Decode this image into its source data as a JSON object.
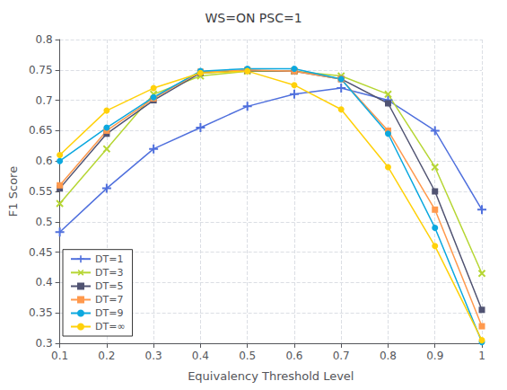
{
  "chart_data": {
    "type": "line",
    "title": "WS=ON PSC=1",
    "xlabel": "Equivalency Threshold Level",
    "ylabel": "F1 Score",
    "x": [
      0.1,
      0.2,
      0.3,
      0.4,
      0.5,
      0.6,
      0.7,
      0.8,
      0.9,
      1.0
    ],
    "xlim": [
      0.1,
      1.0
    ],
    "ylim": [
      0.3,
      0.8
    ],
    "xticks": [
      0.1,
      0.2,
      0.3,
      0.4,
      0.5,
      0.6,
      0.7,
      0.8,
      0.9,
      1
    ],
    "yticks": [
      0.3,
      0.35,
      0.4,
      0.45,
      0.5,
      0.55,
      0.6,
      0.65,
      0.7,
      0.75,
      0.8
    ],
    "series": [
      {
        "name": "DT=1",
        "marker": "plus",
        "values": [
          0.483,
          0.555,
          0.62,
          0.655,
          0.69,
          0.71,
          0.72,
          0.7,
          0.65,
          0.52
        ]
      },
      {
        "name": "DT=3",
        "marker": "x",
        "values": [
          0.53,
          0.62,
          0.71,
          0.74,
          0.748,
          0.748,
          0.74,
          0.71,
          0.59,
          0.415
        ]
      },
      {
        "name": "DT=5",
        "marker": "square",
        "values": [
          0.555,
          0.645,
          0.7,
          0.745,
          0.749,
          0.748,
          0.735,
          0.695,
          0.55,
          0.355
        ]
      },
      {
        "name": "DT=7",
        "marker": "square",
        "values": [
          0.56,
          0.65,
          0.703,
          0.747,
          0.75,
          0.748,
          0.735,
          0.65,
          0.52,
          0.328
        ]
      },
      {
        "name": "DT=9",
        "marker": "circle",
        "values": [
          0.6,
          0.655,
          0.705,
          0.748,
          0.752,
          0.752,
          0.735,
          0.645,
          0.49,
          0.302
        ]
      },
      {
        "name": "DT=∞",
        "marker": "circle",
        "values": [
          0.61,
          0.683,
          0.72,
          0.745,
          0.748,
          0.725,
          0.685,
          0.59,
          0.46,
          0.305
        ]
      }
    ],
    "grid": true,
    "legend": "lower left"
  }
}
